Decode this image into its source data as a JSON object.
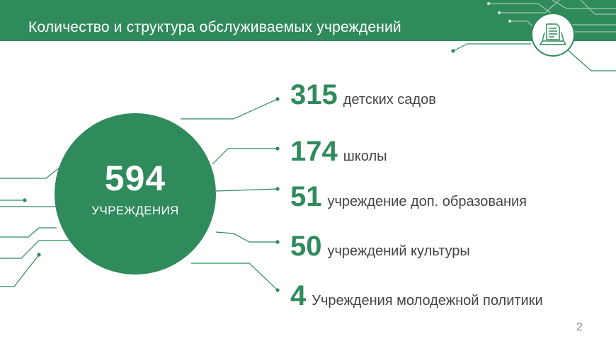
{
  "header": {
    "title": "Количество и структура обслуживаемых учреждений"
  },
  "icon": "laptop-document-icon",
  "total": {
    "value": "594",
    "label": "УЧРЕЖДЕНИЯ"
  },
  "stats": [
    {
      "value": "315",
      "label": "детских садов"
    },
    {
      "value": "174",
      "label": "школы"
    },
    {
      "value": "51",
      "label": "учреждение доп. образования"
    },
    {
      "value": "50",
      "label": "учреждений культуры"
    },
    {
      "value": "4",
      "label": "Учреждения молодежной политики"
    }
  ],
  "page_number": "2",
  "colors": {
    "accent": "#2f8a5c",
    "text": "#444444",
    "page_number": "#888888"
  }
}
